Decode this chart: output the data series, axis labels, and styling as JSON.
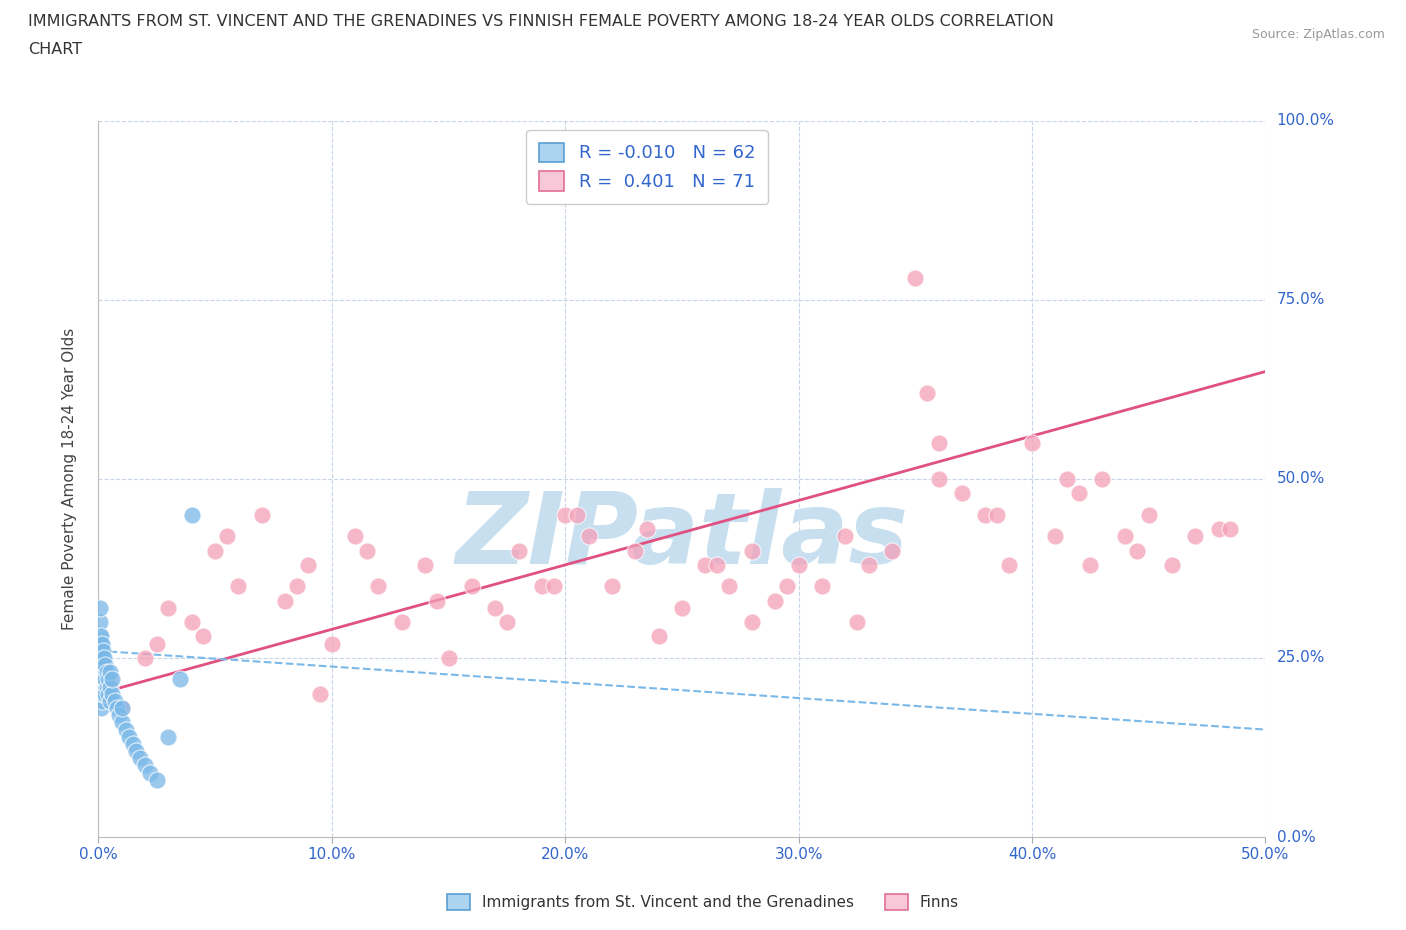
{
  "title_line1": "IMMIGRANTS FROM ST. VINCENT AND THE GRENADINES VS FINNISH FEMALE POVERTY AMONG 18-24 YEAR OLDS CORRELATION",
  "title_line2": "CHART",
  "source_text": "Source: ZipAtlas.com",
  "xlabel_ticks": [
    "0.0%",
    "10.0%",
    "20.0%",
    "30.0%",
    "40.0%",
    "50.0%"
  ],
  "ylabel_ticks": [
    "0.0%",
    "25.0%",
    "50.0%",
    "75.0%",
    "100.0%"
  ],
  "ylabel_label": "Female Poverty Among 18-24 Year Olds",
  "xlim": [
    0,
    50
  ],
  "ylim": [
    0,
    100
  ],
  "blue_R": -0.01,
  "blue_N": 62,
  "pink_R": 0.401,
  "pink_N": 71,
  "blue_color": "#7ab8e8",
  "blue_edge": "#5a9fd4",
  "blue_fill": "#acd4f0",
  "pink_color": "#f4a0b8",
  "pink_edge": "#e07090",
  "pink_fill": "#f9c8d8",
  "blue_scatter_x": [
    0.05,
    0.05,
    0.05,
    0.05,
    0.05,
    0.05,
    0.05,
    0.05,
    0.1,
    0.1,
    0.1,
    0.1,
    0.1,
    0.1,
    0.1,
    0.1,
    0.1,
    0.15,
    0.15,
    0.15,
    0.15,
    0.15,
    0.15,
    0.15,
    0.2,
    0.2,
    0.2,
    0.2,
    0.2,
    0.2,
    0.25,
    0.25,
    0.25,
    0.25,
    0.3,
    0.3,
    0.3,
    0.35,
    0.35,
    0.4,
    0.4,
    0.5,
    0.5,
    0.5,
    0.6,
    0.6,
    0.7,
    0.8,
    0.9,
    1.0,
    1.0,
    1.2,
    1.3,
    1.5,
    1.6,
    1.8,
    2.0,
    2.2,
    2.5,
    3.0,
    3.5,
    4.0
  ],
  "blue_scatter_y": [
    22,
    24,
    25,
    26,
    27,
    28,
    30,
    32,
    18,
    20,
    22,
    23,
    24,
    25,
    26,
    27,
    28,
    19,
    21,
    22,
    23,
    24,
    25,
    27,
    20,
    21,
    22,
    24,
    25,
    26,
    21,
    22,
    23,
    25,
    20,
    22,
    24,
    21,
    23,
    20,
    22,
    19,
    21,
    23,
    20,
    22,
    19,
    18,
    17,
    16,
    18,
    15,
    14,
    13,
    12,
    11,
    10,
    9,
    8,
    14,
    22,
    45
  ],
  "pink_scatter_x": [
    0.5,
    1.0,
    2.0,
    3.0,
    4.0,
    5.0,
    6.0,
    7.0,
    8.0,
    9.0,
    10.0,
    11.0,
    12.0,
    13.0,
    14.0,
    15.0,
    16.0,
    17.0,
    18.0,
    19.0,
    20.0,
    21.0,
    22.0,
    23.0,
    24.0,
    25.0,
    26.0,
    27.0,
    28.0,
    29.0,
    30.0,
    31.0,
    32.0,
    33.0,
    34.0,
    35.0,
    36.0,
    37.0,
    38.0,
    39.0,
    40.0,
    41.0,
    42.0,
    43.0,
    44.0,
    45.0,
    46.0,
    47.0,
    48.0,
    2.5,
    5.5,
    8.5,
    11.5,
    14.5,
    17.5,
    20.5,
    23.5,
    26.5,
    29.5,
    32.5,
    35.5,
    38.5,
    41.5,
    44.5,
    4.5,
    9.5,
    19.5,
    28.0,
    36.0,
    42.5,
    48.5
  ],
  "pink_scatter_y": [
    22,
    18,
    25,
    32,
    30,
    40,
    35,
    45,
    33,
    38,
    27,
    42,
    35,
    30,
    38,
    25,
    35,
    32,
    40,
    35,
    45,
    42,
    35,
    40,
    28,
    32,
    38,
    35,
    40,
    33,
    38,
    35,
    42,
    38,
    40,
    78,
    55,
    48,
    45,
    38,
    55,
    42,
    48,
    50,
    42,
    45,
    38,
    42,
    43,
    27,
    42,
    35,
    40,
    33,
    30,
    45,
    43,
    38,
    35,
    30,
    62,
    45,
    50,
    40,
    28,
    20,
    35,
    30,
    50,
    38,
    43
  ],
  "watermark_text": "ZIPatlas",
  "watermark_color": "#c8dff0",
  "legend_label_blue": "Immigrants from St. Vincent and the Grenadines",
  "legend_label_pink": "Finns",
  "grid_color": "#c8d4e8",
  "background_color": "#ffffff",
  "pink_trend_x0": 0,
  "pink_trend_y0": 20,
  "pink_trend_x1": 50,
  "pink_trend_y1": 65,
  "blue_trend_x0": 0,
  "blue_trend_y0": 26,
  "blue_trend_x1": 50,
  "blue_trend_y1": 15
}
